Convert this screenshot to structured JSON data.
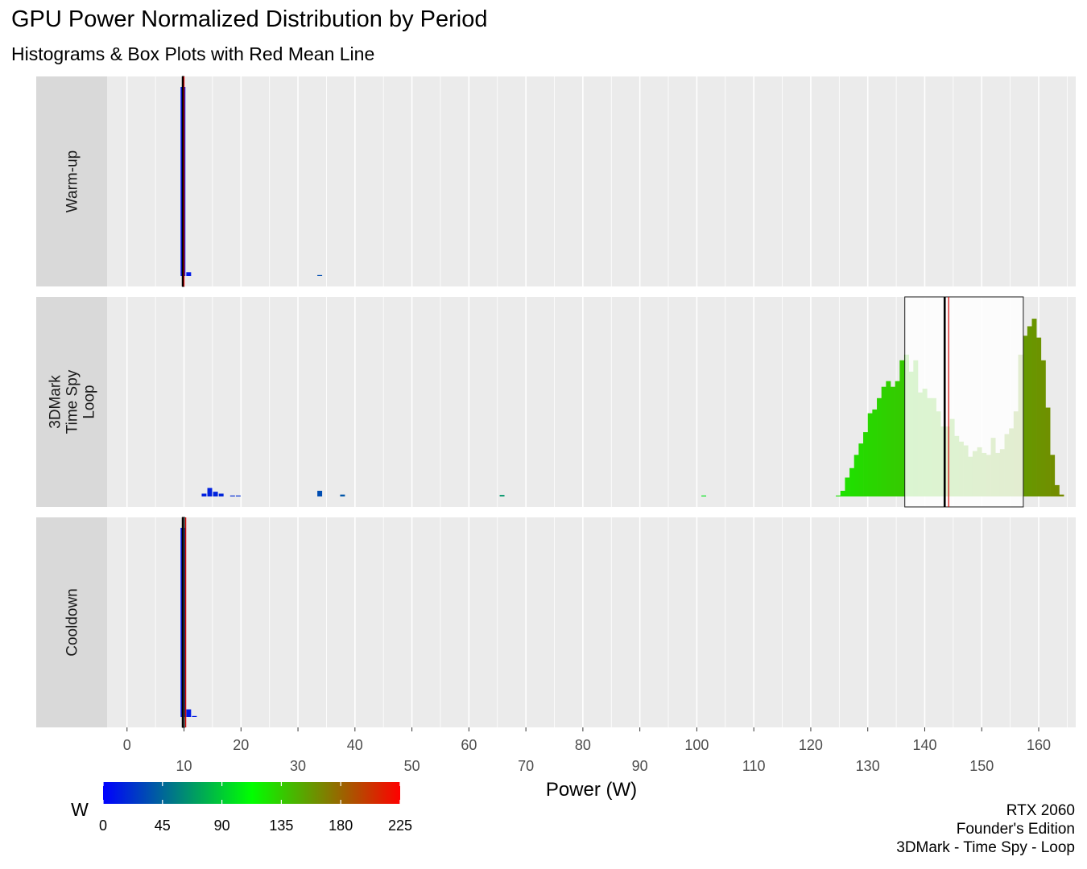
{
  "title": "GPU Power Normalized Distribution by Period",
  "subtitle": "Histograms & Box Plots with Red Mean Line",
  "caption": [
    "RTX 2060",
    "Founder's Edition",
    "3DMark - Time Spy - Loop"
  ],
  "chart_data": {
    "type": "histogram",
    "xlabel": "Power (W)",
    "xlim": [
      -3.5,
      166.5
    ],
    "xticks_top_row": [
      0,
      20,
      40,
      60,
      80,
      100,
      120,
      140,
      160
    ],
    "xticks_bottom_row": [
      10,
      30,
      50,
      70,
      90,
      110,
      130,
      150
    ],
    "grid": true,
    "colorbar": {
      "title": "W",
      "min": 0,
      "max": 225,
      "ticks": [
        0,
        45,
        90,
        135,
        180,
        225
      ],
      "colors": [
        "#0000ff",
        "#00ff00",
        "#ff0000"
      ]
    },
    "panels": [
      {
        "label": [
          "Warm-up"
        ],
        "bins": [
          [
            9.8,
            1.0
          ],
          [
            10.8,
            0.02
          ],
          [
            33.8,
            0.005
          ]
        ],
        "box": {
          "q1": 9.7,
          "median": 9.8,
          "q3": 10.0
        },
        "mean": 10.0
      },
      {
        "label": [
          "3DMark",
          "Time Spy",
          "Loop"
        ],
        "bins": [
          [
            13.5,
            0.015
          ],
          [
            14.5,
            0.045
          ],
          [
            15.5,
            0.025
          ],
          [
            16.5,
            0.015
          ],
          [
            18.5,
            0.005
          ],
          [
            19.5,
            0.005
          ],
          [
            33.8,
            0.03
          ],
          [
            37.8,
            0.01
          ],
          [
            65.8,
            0.008
          ],
          [
            101.2,
            0.005
          ],
          [
            124.8,
            0.005
          ],
          [
            125.6,
            0.03
          ],
          [
            126.4,
            0.1
          ],
          [
            127.2,
            0.15
          ],
          [
            128,
            0.22
          ],
          [
            128.8,
            0.28
          ],
          [
            129.6,
            0.34
          ],
          [
            130.4,
            0.44
          ],
          [
            131.2,
            0.46
          ],
          [
            132,
            0.52
          ],
          [
            132.8,
            0.58
          ],
          [
            133.6,
            0.61
          ],
          [
            134.4,
            0.58
          ],
          [
            135.2,
            0.61
          ],
          [
            136,
            0.72
          ],
          [
            136.8,
            0.75
          ],
          [
            137.6,
            0.66
          ],
          [
            138.4,
            0.72
          ],
          [
            139.2,
            0.55
          ],
          [
            140,
            0.57
          ],
          [
            140.8,
            0.52
          ],
          [
            141.6,
            0.52
          ],
          [
            142.4,
            0.45
          ],
          [
            143.2,
            0.37
          ],
          [
            144,
            0.37
          ],
          [
            144.8,
            0.41
          ],
          [
            145.6,
            0.32
          ],
          [
            146.4,
            0.29
          ],
          [
            147.2,
            0.27
          ],
          [
            148,
            0.21
          ],
          [
            148.8,
            0.24
          ],
          [
            149.6,
            0.26
          ],
          [
            150.4,
            0.23
          ],
          [
            151.2,
            0.22
          ],
          [
            152,
            0.31
          ],
          [
            152.8,
            0.23
          ],
          [
            153.6,
            0.25
          ],
          [
            154.4,
            0.33
          ],
          [
            155.2,
            0.36
          ],
          [
            156,
            0.45
          ],
          [
            156.8,
            0.75
          ],
          [
            157.6,
            0.85
          ],
          [
            158.4,
            0.9
          ],
          [
            159.2,
            0.94
          ],
          [
            160,
            0.84
          ],
          [
            160.8,
            0.72
          ],
          [
            161.6,
            0.47
          ],
          [
            162.4,
            0.22
          ],
          [
            163.2,
            0.06
          ],
          [
            164,
            0.01
          ]
        ],
        "box": {
          "q1": 136.5,
          "median": 143.5,
          "q3": 157.3
        },
        "mean": 144.2
      },
      {
        "label": [
          "Cooldown"
        ],
        "bins": [
          [
            9.8,
            1.0
          ],
          [
            10.8,
            0.04
          ],
          [
            11.8,
            0.005
          ]
        ],
        "box": {
          "q1": 9.7,
          "median": 9.8,
          "q3": 10.1
        },
        "mean": 10.3
      }
    ]
  }
}
